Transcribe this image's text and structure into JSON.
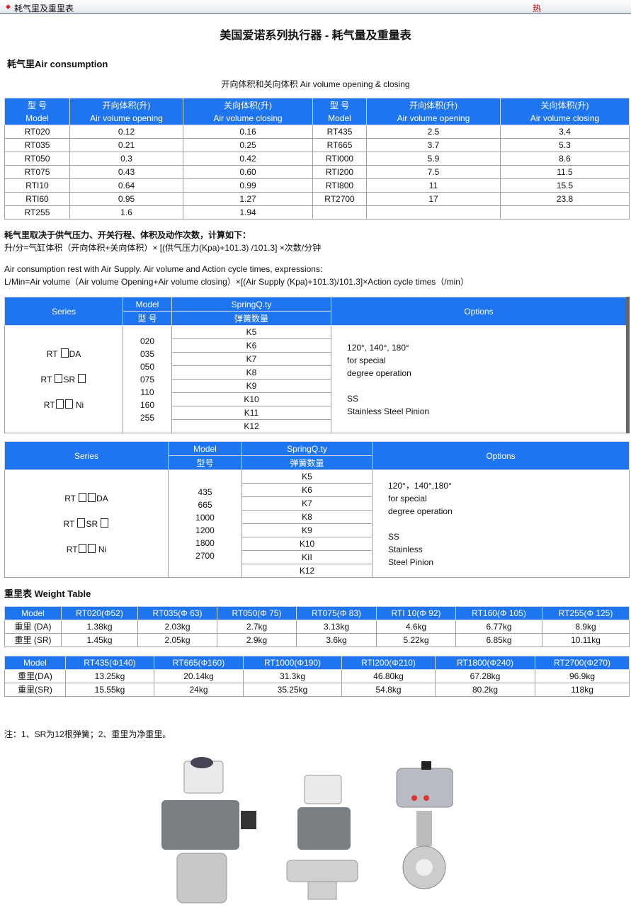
{
  "topbar": {
    "title": "耗气里及重里表",
    "hot": "热"
  },
  "page_title": "美国爱诺系列执行器 - 耗气量及重量表",
  "air": {
    "heading": "耗气里Air consumption",
    "subtitle": "开向体积和关向体积  Air volume opening & closing",
    "headers": [
      [
        "型 号",
        "Model"
      ],
      [
        "开向体积(升)",
        "Air volume opening"
      ],
      [
        "关向体积(升)",
        "Air volume closing"
      ],
      [
        "型 号",
        "Model"
      ],
      [
        "开向体积(升)",
        "Air volume opening"
      ],
      [
        "关向体积(升)",
        "Air volume closing"
      ]
    ],
    "rows": [
      [
        "RT020",
        "0.12",
        "0.16",
        "RT435",
        "2.5",
        "3.4"
      ],
      [
        "RT035",
        "0.21",
        "0.25",
        "RT665",
        "3.7",
        "5.3"
      ],
      [
        "RT050",
        "0.3",
        "0.42",
        "RTI000",
        "5.9",
        "8.6"
      ],
      [
        "RT075",
        "0.43",
        "0.60",
        "RTI200",
        "7.5",
        "11.5"
      ],
      [
        "RTI10",
        "0.64",
        "0.99",
        "RTI800",
        "11",
        "15.5"
      ],
      [
        "RTI60",
        "0.95",
        "1.27",
        "RT2700",
        "17",
        "23.8"
      ],
      [
        "RT255",
        "1.6",
        "1.94",
        "",
        "",
        ""
      ]
    ]
  },
  "formula": {
    "cn1": "耗气里取决于供气压力、开关行程、体积及动作次数，计算如下：",
    "cn2": "升/分=气缸体积（开向体积+关向体积）× [(供气压力(Kpa)+101.3) /101.3] ×次数/分钟",
    "en1": "Air consumption rest with Air Supply.  Air volume and Action cycle times, expressions:",
    "en2": "L/Min=Air volume（Air volume Opening+Air volume closing）×[(Air Supply (Kpa)+101.3)/101.3]×Action cycle times（/min）"
  },
  "series1": {
    "h_series": "Series",
    "h_model": "Model",
    "h_model_cn": "型 号",
    "h_spring": "SpringQ.ty",
    "h_spring_cn": "弹簧数量",
    "h_options": "Options",
    "series": [
      {
        "pre": "RT ",
        "boxes": 1,
        "post": "DA"
      },
      {
        "pre": "RT ",
        "boxes": 1,
        "post": "SR ",
        "tail": 1
      },
      {
        "pre": "RT",
        "boxes": 2,
        "post": " Ni"
      }
    ],
    "models": [
      "020",
      "035",
      "050",
      "075",
      "110",
      "160",
      "255"
    ],
    "springs": [
      "K5",
      "K6",
      "K7",
      "K8",
      "K9",
      "K10",
      "K11",
      "K12"
    ],
    "options": [
      "120°, 140°, 180°",
      "for special",
      "degree operation",
      "",
      "SS",
      "Stainless Steel Pinion"
    ]
  },
  "series2": {
    "h_series": "Series",
    "h_model": "Model",
    "h_model_cn": "型号",
    "h_spring": "SpringQ.ty",
    "h_spring_cn": "弹簧数量",
    "h_options": "Options",
    "series": [
      {
        "pre": "RT ",
        "boxes": 2,
        "post": "DA"
      },
      {
        "pre": "RT ",
        "boxes": 1,
        "post": "SR ",
        "tail": 1
      },
      {
        "pre": "RT",
        "boxes": 2,
        "post": " Ni"
      }
    ],
    "models": [
      "435",
      "665",
      "1000",
      "1200",
      "1800",
      "2700"
    ],
    "springs": [
      "K5",
      "K6",
      "K7",
      "K8",
      "K9",
      "K10",
      "KII",
      "K12"
    ],
    "options": [
      "120°，140°,180°",
      "for special",
      "degree operation",
      "",
      "SS",
      "Stainless",
      "Steel Pinion"
    ]
  },
  "weight": {
    "heading": "重里表   Weight Table",
    "t1": {
      "header": [
        "Model",
        "RT020(Φ52)",
        "RT035(Φ 63)",
        "RT050(Φ 75)",
        "RT075(Φ 83)",
        "RTI 10(Φ 92)",
        "RT160(Φ 105)",
        "RT255(Φ 125)"
      ],
      "rows": [
        [
          "重里 (DA)",
          "1.38kg",
          "2.03kg",
          "2.7kg",
          "3.13kg",
          "4.6kg",
          "6.77kg",
          "8.9kg"
        ],
        [
          "重里 (SR)",
          "1.45kg",
          "2.05kg",
          "2.9kg",
          "3.6kg",
          "5.22kg",
          "6.85kg",
          "10.11kg"
        ]
      ]
    },
    "t2": {
      "header": [
        "Model",
        "RT435(Φ140)",
        "RT665(Φ160)",
        "RT1000(Φ190)",
        "RTI200(Φ210)",
        "RT1800(Φ240)",
        "RT2700(Φ270)"
      ],
      "rows": [
        [
          "重里(DA)",
          "13.25kg",
          "20.14kg",
          "31.3kg",
          "46.80kg",
          "67.28kg",
          "96.9kg"
        ],
        [
          "重里(SR)",
          "15.55kg",
          "24kg",
          "35.25kg",
          "54.8kg",
          "80.2kg",
          "118kg"
        ]
      ]
    }
  },
  "note": "注：1、SR为12根弹簧；2、重里为净重里。",
  "colors": {
    "header_blue": "#1f75f0",
    "hot_red": "#cc0000"
  }
}
